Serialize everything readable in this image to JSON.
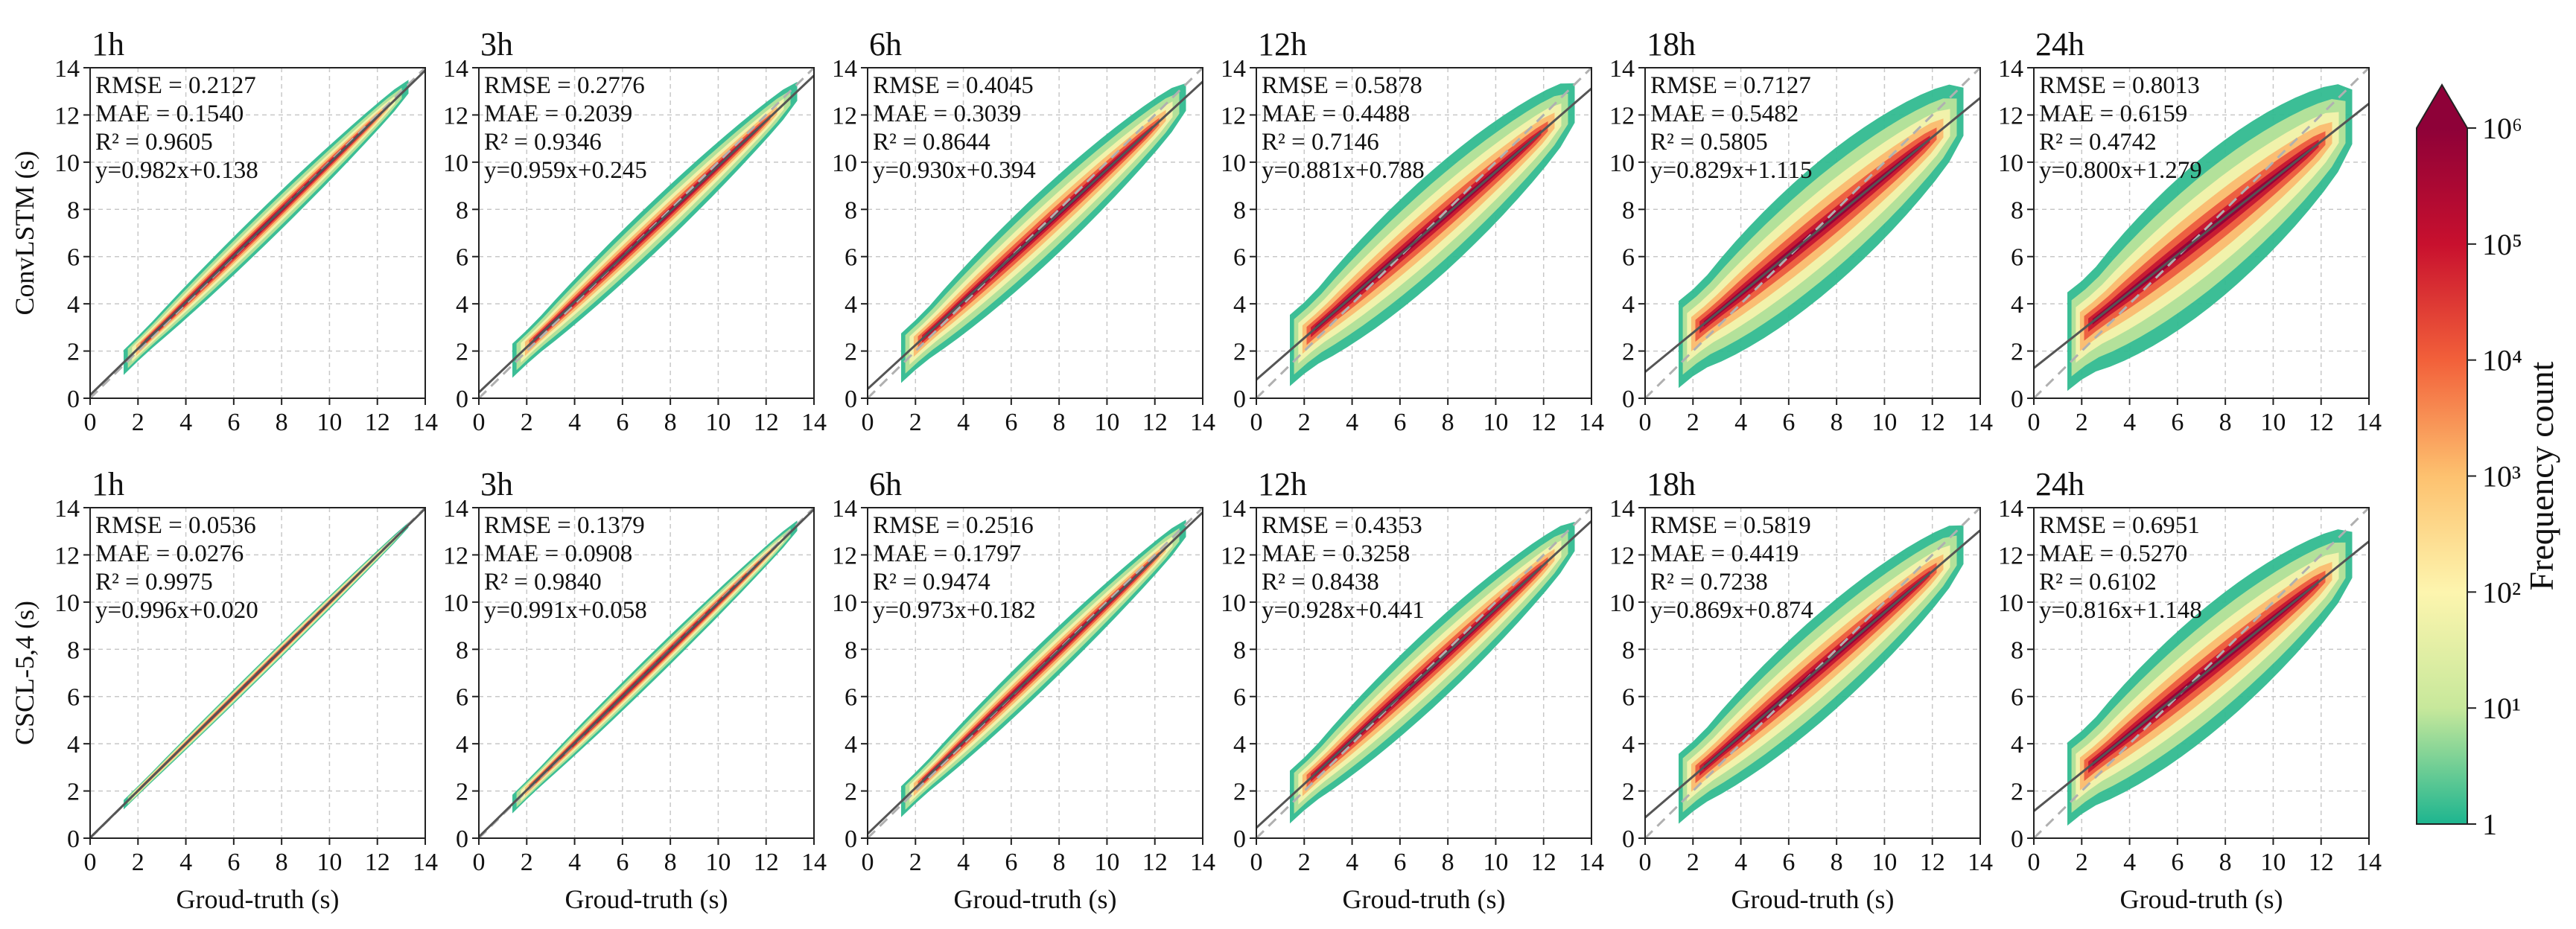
{
  "chart_data": {
    "type": "scatter",
    "description_kind": "density-scatter",
    "x_label": "Groud-truth (s)",
    "y_unit_label": "(s)",
    "xlim": [
      0,
      14
    ],
    "ylim": [
      0,
      14
    ],
    "ticks": [
      "0",
      "2",
      "4",
      "6",
      "8",
      "10",
      "12",
      "14"
    ],
    "grid": true,
    "reference_line": "y = x (dashed)",
    "fit_line": "solid",
    "horizons": [
      "1h",
      "3h",
      "6h",
      "12h",
      "18h",
      "24h"
    ],
    "rows": [
      {
        "model": "ConvLSTM",
        "panels": [
          {
            "title": "1h",
            "rmse": "RMSE = 0.2127",
            "mae": "MAE = 0.1540",
            "r2": "R² = 0.9605",
            "fit": "y=0.982x+0.138",
            "slope": 0.982,
            "intercept": 0.138,
            "spread": 0.3
          },
          {
            "title": "3h",
            "rmse": "RMSE = 0.2776",
            "mae": "MAE = 0.2039",
            "r2": "R² = 0.9346",
            "fit": "y=0.959x+0.245",
            "slope": 0.959,
            "intercept": 0.245,
            "spread": 0.42
          },
          {
            "title": "6h",
            "rmse": "RMSE = 0.4045",
            "mae": "MAE = 0.3039",
            "r2": "R² = 0.8644",
            "fit": "y=0.930x+0.394",
            "slope": 0.93,
            "intercept": 0.394,
            "spread": 0.62
          },
          {
            "title": "12h",
            "rmse": "RMSE = 0.5878",
            "mae": "MAE = 0.4488",
            "r2": "R² = 0.7146",
            "fit": "y=0.881x+0.788",
            "slope": 0.881,
            "intercept": 0.788,
            "spread": 0.9
          },
          {
            "title": "18h",
            "rmse": "RMSE = 0.7127",
            "mae": "MAE = 0.5482",
            "r2": "R² = 0.5805",
            "fit": "y=0.829x+1.115",
            "slope": 0.829,
            "intercept": 1.115,
            "spread": 1.1
          },
          {
            "title": "24h",
            "rmse": "RMSE = 0.8013",
            "mae": "MAE = 0.6159",
            "r2": "R² = 0.4742",
            "fit": "y=0.800x+1.279",
            "slope": 0.8,
            "intercept": 1.279,
            "spread": 1.25
          }
        ]
      },
      {
        "model": "CSCL-5,4",
        "panels": [
          {
            "title": "1h",
            "rmse": "RMSE = 0.0536",
            "mae": "MAE = 0.0276",
            "r2": "R² = 0.9975",
            "fit": "y=0.996x+0.020",
            "slope": 0.996,
            "intercept": 0.02,
            "spread": 0.1
          },
          {
            "title": "3h",
            "rmse": "RMSE = 0.1379",
            "mae": "MAE = 0.0908",
            "r2": "R² = 0.9840",
            "fit": "y=0.991x+0.058",
            "slope": 0.991,
            "intercept": 0.058,
            "spread": 0.22
          },
          {
            "title": "6h",
            "rmse": "RMSE = 0.2516",
            "mae": "MAE = 0.1797",
            "r2": "R² = 0.9474",
            "fit": "y=0.973x+0.182",
            "slope": 0.973,
            "intercept": 0.182,
            "spread": 0.38
          },
          {
            "title": "12h",
            "rmse": "RMSE = 0.4353",
            "mae": "MAE = 0.3258",
            "r2": "R² = 0.8438",
            "fit": "y=0.928x+0.441",
            "slope": 0.928,
            "intercept": 0.441,
            "spread": 0.66
          },
          {
            "title": "18h",
            "rmse": "RMSE = 0.5819",
            "mae": "MAE = 0.4419",
            "r2": "R² = 0.7238",
            "fit": "y=0.869x+0.874",
            "slope": 0.869,
            "intercept": 0.874,
            "spread": 0.88
          },
          {
            "title": "24h",
            "rmse": "RMSE = 0.6951",
            "mae": "MAE = 0.5270",
            "r2": "R² = 0.6102",
            "fit": "y=0.816x+1.148",
            "slope": 0.816,
            "intercept": 1.148,
            "spread": 1.05
          }
        ]
      }
    ],
    "colorbar": {
      "label": "Frequency count",
      "scale": "log",
      "ticks": [
        "1",
        "10¹",
        "10²",
        "10³",
        "10⁴",
        "10⁵",
        "10⁶"
      ],
      "extend": "max",
      "colors": [
        "#1db58f",
        "#c7e89b",
        "#fdf5ae",
        "#fdc16f",
        "#f2603a",
        "#c8102e",
        "#8e0138"
      ]
    }
  }
}
